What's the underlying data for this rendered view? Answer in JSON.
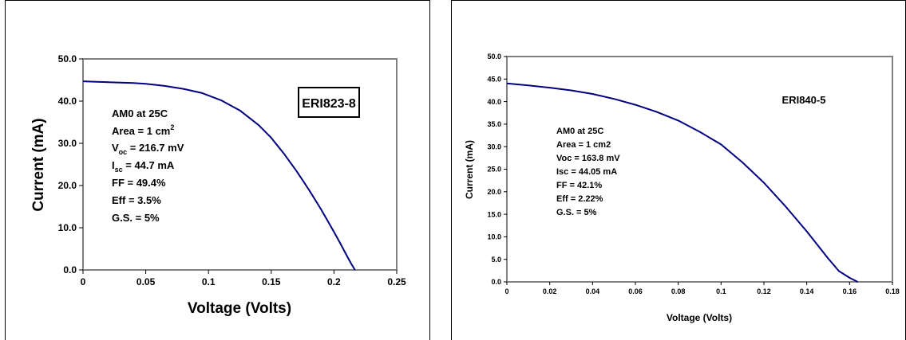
{
  "charts": [
    {
      "type": "line",
      "xlabel": "Voltage (Volts)",
      "ylabel": "Current (mA)",
      "xlim": [
        0,
        0.25
      ],
      "ylim": [
        0,
        50
      ],
      "x_ticks": [
        "0",
        "0.05",
        "0.1",
        "0.15",
        "0.2",
        "0.25"
      ],
      "y_ticks": [
        "0.0",
        "10.0",
        "20.0",
        "30.0",
        "40.0",
        "50.0"
      ],
      "label_box": "ERI823-8",
      "annotations": {
        "line1": "AM0 at 25C",
        "line2_pre": "Area = 1 cm",
        "line2_sup": "2",
        "line3_pre": "V",
        "line3_sub": "oc",
        "line3_post": " = 216.7 mV",
        "line4_pre": "I",
        "line4_sub": "sc",
        "line4_post": " = 44.7 mA",
        "line5": "FF = 49.4%",
        "line6": "Eff = 3.5%",
        "line7": "G.S. = 5%"
      },
      "line_color": "#000080",
      "grid": false
    },
    {
      "type": "line",
      "xlabel": "Voltage (Volts)",
      "ylabel": "Current (mA)",
      "xlim": [
        0,
        0.18
      ],
      "ylim": [
        0,
        50
      ],
      "x_ticks": [
        "0",
        "0.02",
        "0.04",
        "0.06",
        "0.08",
        "0.1",
        "0.12",
        "0.14",
        "0.16",
        "0.18"
      ],
      "y_ticks": [
        "0.0",
        "5.0",
        "10.0",
        "15.0",
        "20.0",
        "25.0",
        "30.0",
        "35.0",
        "40.0",
        "45.0",
        "50.0"
      ],
      "label_text": "ERI840-5",
      "annotations": {
        "line1": "AM0 at 25C",
        "line2": "Area = 1 cm2",
        "line3": "Voc = 163.8 mV",
        "line4": "Isc = 44.05 mA",
        "line5": "FF = 42.1%",
        "line6": "Eff = 2.22%",
        "line7": "G.S. = 5%"
      },
      "line_color": "#000080",
      "grid": false
    }
  ],
  "chart_data": [
    {
      "type": "line",
      "title": "",
      "xlabel": "Voltage (Volts)",
      "ylabel": "Current (mA)",
      "xlim": [
        0,
        0.25
      ],
      "ylim": [
        0,
        50
      ],
      "series": [
        {
          "x": [
            0,
            0.02,
            0.04,
            0.05,
            0.065,
            0.08,
            0.095,
            0.11,
            0.125,
            0.14,
            0.15,
            0.16,
            0.17,
            0.18,
            0.19,
            0.2,
            0.205,
            0.21,
            0.2135,
            0.2167
          ],
          "y": [
            44.7,
            44.5,
            44.3,
            44.1,
            43.6,
            42.9,
            41.9,
            40.2,
            37.8,
            34.3,
            31.3,
            27.6,
            23.5,
            19.0,
            14.2,
            9.0,
            6.3,
            3.5,
            1.6,
            0.0
          ]
        }
      ]
    },
    {
      "type": "line",
      "title": "",
      "xlabel": "Voltage (Volts)",
      "ylabel": "Current (mA)",
      "xlim": [
        0,
        0.18
      ],
      "ylim": [
        0,
        50
      ],
      "series": [
        {
          "x": [
            0,
            0.01,
            0.02,
            0.03,
            0.04,
            0.05,
            0.06,
            0.07,
            0.08,
            0.09,
            0.1,
            0.11,
            0.12,
            0.13,
            0.14,
            0.145,
            0.15,
            0.155,
            0.16,
            0.1638
          ],
          "y": [
            44.05,
            43.6,
            43.1,
            42.5,
            41.7,
            40.6,
            39.3,
            37.7,
            35.8,
            33.3,
            30.5,
            26.5,
            22.0,
            16.8,
            11.2,
            8.2,
            5.2,
            2.4,
            0.9,
            0.0
          ]
        }
      ]
    }
  ]
}
